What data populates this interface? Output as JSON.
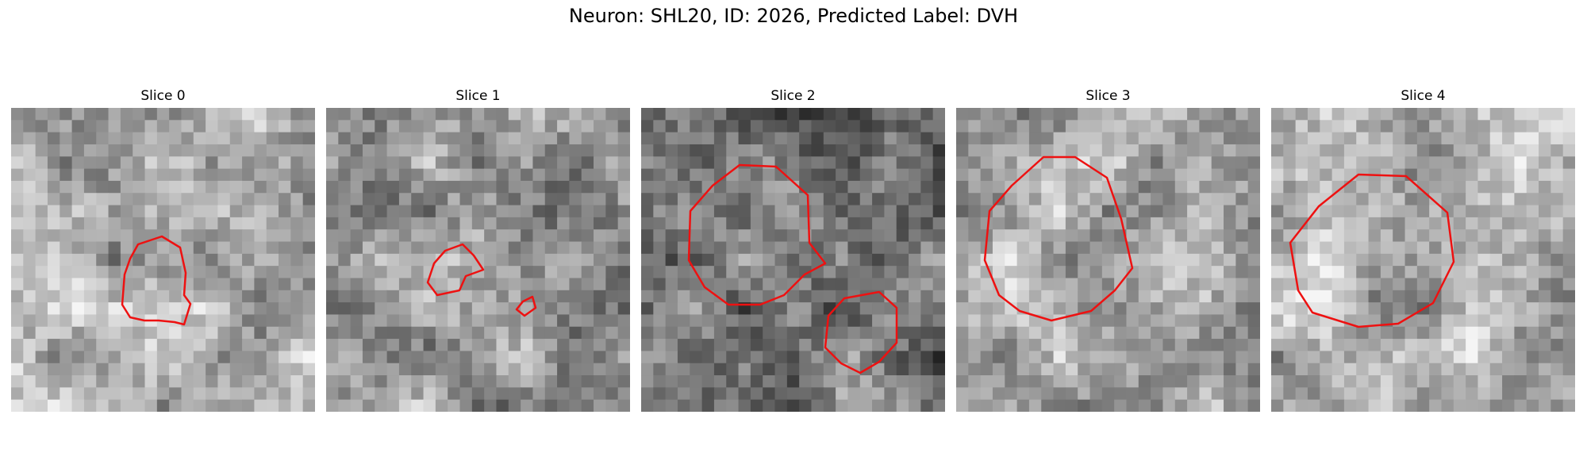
{
  "figure": {
    "title": "Neuron: SHL20, ID: 2026, Predicted Label: DVH",
    "contour_color": "#ee1111"
  },
  "panels": [
    {
      "title": "Slice 0"
    },
    {
      "title": "Slice 1"
    },
    {
      "title": "Slice 2"
    },
    {
      "title": "Slice 3"
    },
    {
      "title": "Slice 4"
    }
  ]
}
